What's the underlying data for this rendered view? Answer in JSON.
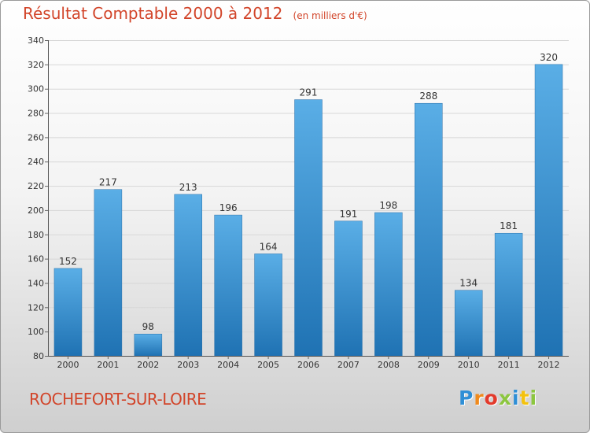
{
  "chart_data": {
    "type": "bar",
    "title": "Résultat Comptable 2000 à 2012",
    "unit_label": "(en milliers d'€)",
    "categories": [
      "2000",
      "2001",
      "2002",
      "2003",
      "2004",
      "2005",
      "2006",
      "2007",
      "2008",
      "2009",
      "2010",
      "2011",
      "2012"
    ],
    "values": [
      152,
      217,
      98,
      213,
      196,
      164,
      291,
      191,
      198,
      288,
      134,
      181,
      320
    ],
    "ylim": [
      80,
      340
    ],
    "yticks": [
      80,
      100,
      120,
      140,
      160,
      180,
      200,
      220,
      240,
      260,
      280,
      300,
      320,
      340
    ],
    "xlabel": "",
    "ylabel": "",
    "grid": true
  },
  "footer": {
    "commune": "ROCHEFORT-SUR-LOIRE",
    "logo_letters": [
      "P",
      "r",
      "o",
      "x",
      "i",
      "t",
      "i"
    ]
  },
  "colors": {
    "bar_top": "#5aaee6",
    "bar_bottom": "#1f72b3",
    "title": "#d2452a",
    "logo": [
      "#2f8fd6",
      "#f08a1c",
      "#e33a2b",
      "#8cc63f",
      "#2f8fd6",
      "#f4c20d",
      "#8cc63f"
    ]
  }
}
